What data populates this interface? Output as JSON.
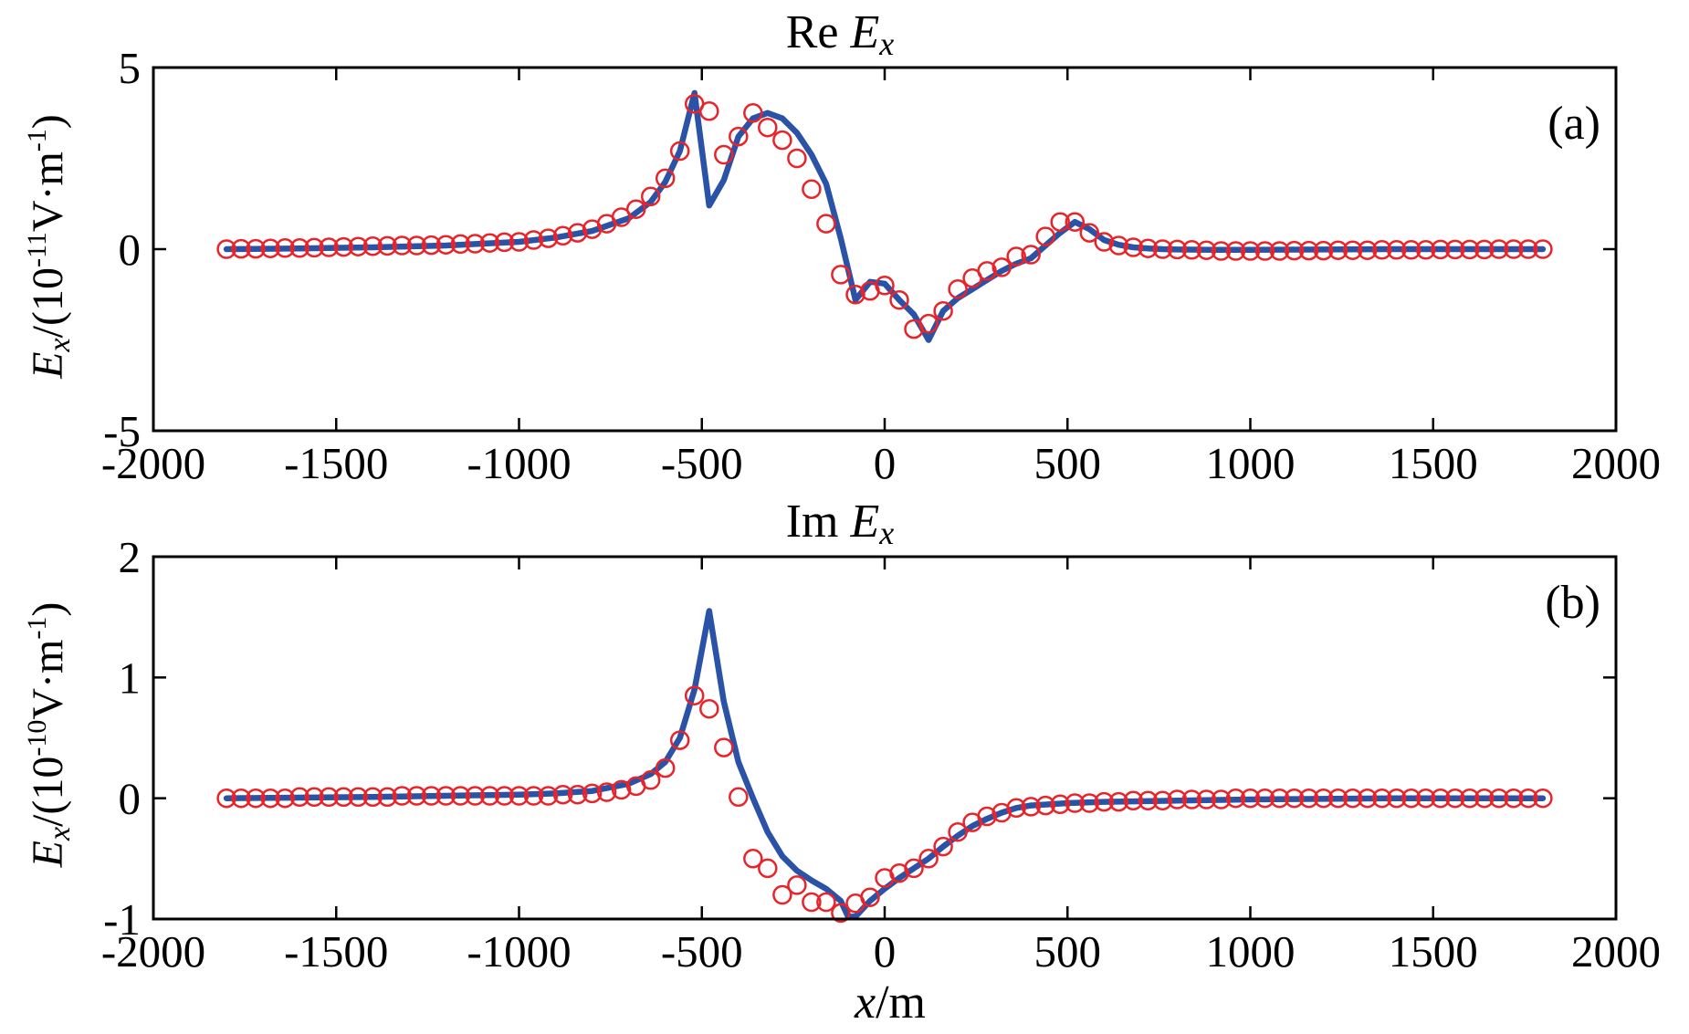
{
  "chart_data": [
    {
      "type": "line",
      "title": "Re Ex",
      "title_parts": {
        "prefix": "Re",
        "main": "E",
        "sub": "x"
      },
      "panel_label": "(a)",
      "ylabel_parts": {
        "main": "E",
        "sub": "x",
        "unit_pre": "/(10",
        "exp": "-11",
        "unit_post": "V·m",
        "exp2": "-1",
        "close": ")"
      },
      "xlabel": "",
      "xlim": [
        -2000,
        2000
      ],
      "ylim": [
        -5,
        5
      ],
      "xticks": [
        -2000,
        -1500,
        -1000,
        -500,
        0,
        500,
        1000,
        1500,
        2000
      ],
      "yticks": [
        -5,
        0,
        5
      ],
      "series": [
        {
          "name": "line",
          "style": "line",
          "color": "#2a52a6",
          "x": [
            -1800,
            -1600,
            -1400,
            -1200,
            -1000,
            -900,
            -800,
            -700,
            -640,
            -600,
            -560,
            -520,
            -480,
            -440,
            -400,
            -360,
            -320,
            -280,
            -240,
            -200,
            -160,
            -120,
            -80,
            -40,
            0,
            40,
            80,
            120,
            160,
            200,
            240,
            280,
            320,
            360,
            400,
            440,
            480,
            520,
            560,
            600,
            640,
            680,
            720,
            760,
            800,
            900,
            1000,
            1200,
            1400,
            1600,
            1800
          ],
          "y": [
            0,
            0.02,
            0.05,
            0.1,
            0.2,
            0.32,
            0.5,
            0.85,
            1.3,
            1.85,
            2.7,
            4.3,
            1.2,
            1.9,
            3.1,
            3.6,
            3.75,
            3.6,
            3.2,
            2.6,
            1.8,
            0.3,
            -1.4,
            -0.9,
            -0.95,
            -1.4,
            -1.8,
            -2.5,
            -1.7,
            -1.35,
            -1.1,
            -0.85,
            -0.6,
            -0.4,
            -0.25,
            0.1,
            0.45,
            0.75,
            0.55,
            0.25,
            0.12,
            0.05,
            0.02,
            0,
            -0.01,
            -0.02,
            -0.02,
            -0.01,
            0,
            0,
            0
          ]
        },
        {
          "name": "markers",
          "style": "circle",
          "color": "#e8242a",
          "x": [
            -1800,
            -1760,
            -1720,
            -1680,
            -1640,
            -1600,
            -1560,
            -1520,
            -1480,
            -1440,
            -1400,
            -1360,
            -1320,
            -1280,
            -1240,
            -1200,
            -1160,
            -1120,
            -1080,
            -1040,
            -1000,
            -960,
            -920,
            -880,
            -840,
            -800,
            -760,
            -720,
            -680,
            -640,
            -600,
            -560,
            -520,
            -480,
            -440,
            -400,
            -360,
            -320,
            -280,
            -240,
            -200,
            -160,
            -120,
            -80,
            -40,
            0,
            40,
            80,
            120,
            160,
            200,
            240,
            280,
            320,
            360,
            400,
            440,
            480,
            520,
            560,
            600,
            640,
            680,
            720,
            760,
            800,
            840,
            880,
            920,
            960,
            1000,
            1040,
            1080,
            1120,
            1160,
            1200,
            1240,
            1280,
            1320,
            1360,
            1400,
            1440,
            1480,
            1520,
            1560,
            1600,
            1640,
            1680,
            1720,
            1760,
            1800
          ],
          "y": [
            0,
            0.01,
            0.01,
            0.02,
            0.03,
            0.03,
            0.04,
            0.05,
            0.06,
            0.07,
            0.08,
            0.09,
            0.1,
            0.1,
            0.11,
            0.12,
            0.14,
            0.15,
            0.17,
            0.19,
            0.2,
            0.25,
            0.3,
            0.37,
            0.45,
            0.55,
            0.7,
            0.88,
            1.1,
            1.45,
            1.95,
            2.7,
            4.0,
            3.8,
            2.6,
            3.1,
            3.75,
            3.35,
            3.0,
            2.5,
            1.65,
            0.7,
            -0.7,
            -1.25,
            -1.15,
            -1.0,
            -1.4,
            -2.2,
            -2.05,
            -1.7,
            -1.1,
            -0.8,
            -0.6,
            -0.5,
            -0.2,
            -0.15,
            0.35,
            0.75,
            0.75,
            0.45,
            0.2,
            0.1,
            0.05,
            0.02,
            0,
            -0.01,
            -0.02,
            -0.03,
            -0.05,
            -0.05,
            -0.05,
            -0.05,
            -0.05,
            -0.04,
            -0.04,
            -0.04,
            -0.03,
            -0.03,
            -0.03,
            -0.02,
            -0.02,
            -0.02,
            -0.02,
            -0.01,
            -0.01,
            -0.01,
            -0.01,
            0,
            0,
            0,
            0
          ]
        }
      ]
    },
    {
      "type": "line",
      "title": "Im Ex",
      "title_parts": {
        "prefix": "Im",
        "main": "E",
        "sub": "x"
      },
      "panel_label": "(b)",
      "ylabel_parts": {
        "main": "E",
        "sub": "x",
        "unit_pre": "/(10",
        "exp": "-10",
        "unit_post": "V·m",
        "exp2": "-1",
        "close": ")"
      },
      "xlabel": "x/m",
      "xlabel_parts": {
        "main": "x",
        "rest": "/m"
      },
      "xlim": [
        -2000,
        2000
      ],
      "ylim": [
        -1,
        2
      ],
      "xticks": [
        -2000,
        -1500,
        -1000,
        -500,
        0,
        500,
        1000,
        1500,
        2000
      ],
      "yticks": [
        -1,
        0,
        1,
        2
      ],
      "series": [
        {
          "name": "line",
          "style": "line",
          "color": "#2a52a6",
          "x": [
            -1800,
            -1400,
            -1000,
            -900,
            -800,
            -700,
            -640,
            -600,
            -560,
            -520,
            -480,
            -440,
            -400,
            -360,
            -320,
            -280,
            -240,
            -200,
            -160,
            -120,
            -100,
            -80,
            -40,
            0,
            40,
            80,
            120,
            160,
            200,
            240,
            280,
            320,
            360,
            400,
            500,
            600,
            800,
            1000,
            1400,
            1800
          ],
          "y": [
            0,
            0.01,
            0.03,
            0.04,
            0.06,
            0.12,
            0.2,
            0.3,
            0.5,
            0.9,
            1.55,
            0.8,
            0.3,
            0.0,
            -0.28,
            -0.48,
            -0.6,
            -0.68,
            -0.75,
            -0.85,
            -0.98,
            -0.98,
            -0.85,
            -0.75,
            -0.66,
            -0.58,
            -0.5,
            -0.4,
            -0.31,
            -0.23,
            -0.17,
            -0.12,
            -0.08,
            -0.06,
            -0.04,
            -0.03,
            -0.02,
            -0.01,
            0,
            0
          ]
        },
        {
          "name": "markers",
          "style": "circle",
          "color": "#e8242a",
          "x": [
            -1800,
            -1760,
            -1720,
            -1680,
            -1640,
            -1600,
            -1560,
            -1520,
            -1480,
            -1440,
            -1400,
            -1360,
            -1320,
            -1280,
            -1240,
            -1200,
            -1160,
            -1120,
            -1080,
            -1040,
            -1000,
            -960,
            -920,
            -880,
            -840,
            -800,
            -760,
            -720,
            -680,
            -640,
            -600,
            -560,
            -520,
            -480,
            -440,
            -400,
            -360,
            -320,
            -280,
            -240,
            -200,
            -160,
            -120,
            -80,
            -40,
            0,
            40,
            80,
            120,
            160,
            200,
            240,
            280,
            320,
            360,
            400,
            440,
            480,
            520,
            560,
            600,
            640,
            680,
            720,
            760,
            800,
            840,
            880,
            920,
            960,
            1000,
            1040,
            1080,
            1120,
            1160,
            1200,
            1240,
            1280,
            1320,
            1360,
            1400,
            1440,
            1480,
            1520,
            1560,
            1600,
            1640,
            1680,
            1720,
            1760,
            1800
          ],
          "y": [
            0,
            0,
            0,
            0,
            0,
            0.01,
            0.01,
            0.01,
            0.01,
            0.01,
            0.01,
            0.01,
            0.02,
            0.02,
            0.02,
            0.02,
            0.02,
            0.02,
            0.02,
            0.02,
            0.02,
            0.02,
            0.02,
            0.03,
            0.03,
            0.04,
            0.05,
            0.07,
            0.1,
            0.15,
            0.25,
            0.48,
            0.85,
            0.74,
            0.42,
            0.01,
            -0.5,
            -0.58,
            -0.8,
            -0.72,
            -0.86,
            -0.86,
            -0.95,
            -0.87,
            -0.82,
            -0.66,
            -0.62,
            -0.58,
            -0.5,
            -0.4,
            -0.28,
            -0.2,
            -0.15,
            -0.12,
            -0.08,
            -0.07,
            -0.06,
            -0.05,
            -0.04,
            -0.04,
            -0.03,
            -0.03,
            -0.02,
            -0.02,
            -0.02,
            -0.01,
            -0.01,
            -0.01,
            -0.01,
            0,
            0,
            0,
            0,
            0,
            0,
            0,
            0,
            0,
            0,
            0,
            0,
            0,
            0,
            0,
            0,
            0,
            0,
            0,
            0,
            0,
            0
          ]
        }
      ]
    }
  ]
}
